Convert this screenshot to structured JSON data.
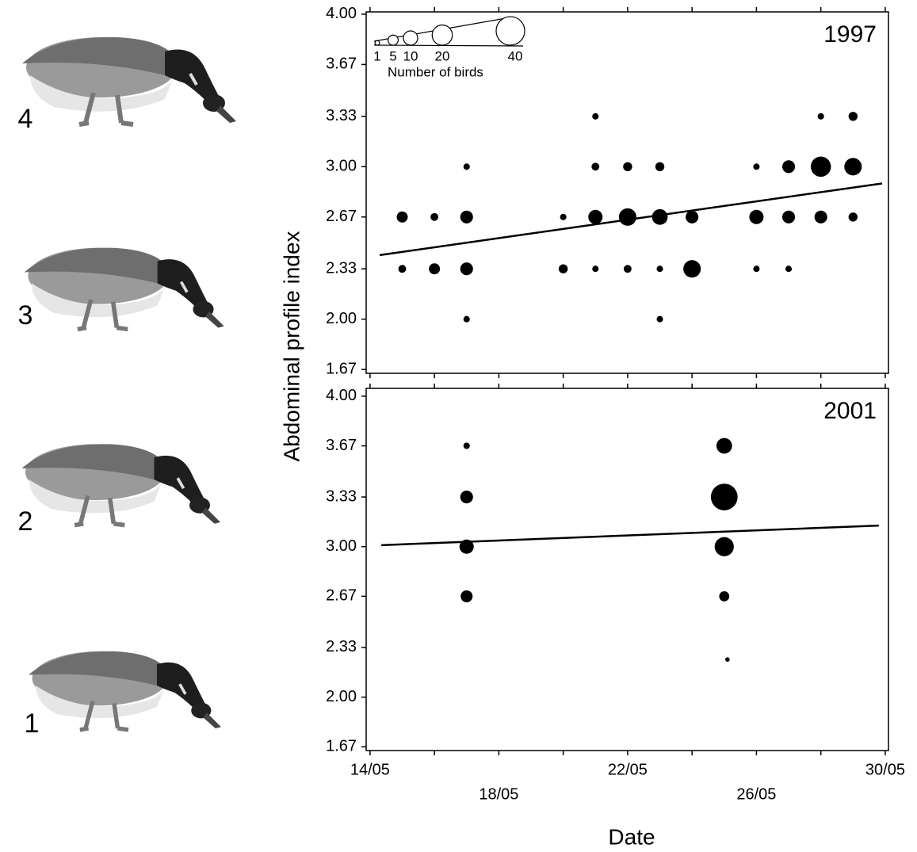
{
  "axis_labels": {
    "x": "Date",
    "y": "Abdominal profile index"
  },
  "profile_labels": [
    4,
    3,
    2,
    1
  ],
  "size_legend": {
    "title": "Number of birds",
    "values": [
      1,
      5,
      10,
      20,
      40
    ]
  },
  "chart_data": [
    {
      "type": "scatter",
      "panel_label": "1997",
      "color": "#000000",
      "x": [
        15,
        15,
        16,
        16,
        17,
        17,
        17,
        17,
        20,
        20,
        21,
        21,
        21,
        21,
        22,
        22,
        22,
        23,
        23,
        23,
        23,
        24,
        24,
        26,
        26,
        26,
        27,
        27,
        27,
        28,
        28,
        28,
        29,
        29,
        29
      ],
      "y": [
        2.67,
        2.33,
        2.67,
        2.33,
        3.0,
        2.67,
        2.33,
        2.0,
        2.67,
        2.33,
        3.33,
        3.0,
        2.67,
        2.33,
        3.0,
        2.67,
        2.33,
        3.0,
        2.67,
        2.33,
        2.0,
        2.67,
        2.33,
        3.0,
        2.67,
        2.33,
        3.0,
        2.67,
        2.33,
        3.33,
        3.0,
        2.67,
        3.33,
        3.0,
        2.67
      ],
      "sizes": [
        6,
        3,
        3,
        6,
        2,
        8,
        8,
        2,
        2,
        4,
        2,
        3,
        10,
        2,
        4,
        15,
        3,
        4,
        12,
        2,
        2,
        8,
        15,
        2,
        10,
        2,
        8,
        8,
        2,
        2,
        20,
        8,
        4,
        15,
        4
      ],
      "trend": {
        "x": [
          14.3,
          29.9
        ],
        "y": [
          2.42,
          2.89
        ]
      },
      "xlim": [
        13.88,
        30.1
      ],
      "ylim": [
        1.645,
        4.015
      ],
      "xticks": [
        14,
        16,
        18,
        20,
        22,
        24,
        26,
        28,
        30
      ],
      "yticks": [
        1.67,
        {
          "value": 2,
          "label": "2.00"
        },
        2.33,
        2.67,
        {
          "value": 3,
          "label": "3.00"
        },
        3.33,
        3.67,
        {
          "value": 4,
          "label": "4.00"
        }
      ]
    },
    {
      "type": "scatter",
      "panel_label": "2001",
      "color": "#000000",
      "x": [
        17,
        17,
        17,
        17,
        25,
        25,
        25,
        25,
        25.1
      ],
      "y": [
        3.67,
        3.33,
        3.0,
        2.67,
        3.67,
        3.33,
        3.0,
        2.67,
        2.25
      ],
      "sizes": [
        2,
        8,
        10,
        7,
        12,
        35,
        18,
        5,
        1
      ],
      "trend": {
        "x": [
          14.35,
          29.8
        ],
        "y": [
          3.01,
          3.14
        ]
      },
      "xlim": [
        13.88,
        30.1
      ],
      "ylim": [
        1.645,
        4.052
      ],
      "xticks": [
        {
          "value": 14,
          "label": "14/05"
        },
        {
          "value": 18,
          "label": "18/05"
        },
        {
          "value": 22,
          "label": "22/05"
        },
        {
          "value": 26,
          "label": "26/05"
        },
        {
          "value": 30,
          "label": "30/05"
        }
      ],
      "xminor_ticks": [
        16,
        20,
        24,
        28
      ],
      "yticks": [
        1.67,
        {
          "value": 2,
          "label": "2.00"
        },
        2.33,
        2.67,
        {
          "value": 3,
          "label": "3.00"
        },
        3.33,
        3.67,
        {
          "value": 4,
          "label": "4.00"
        }
      ]
    }
  ]
}
